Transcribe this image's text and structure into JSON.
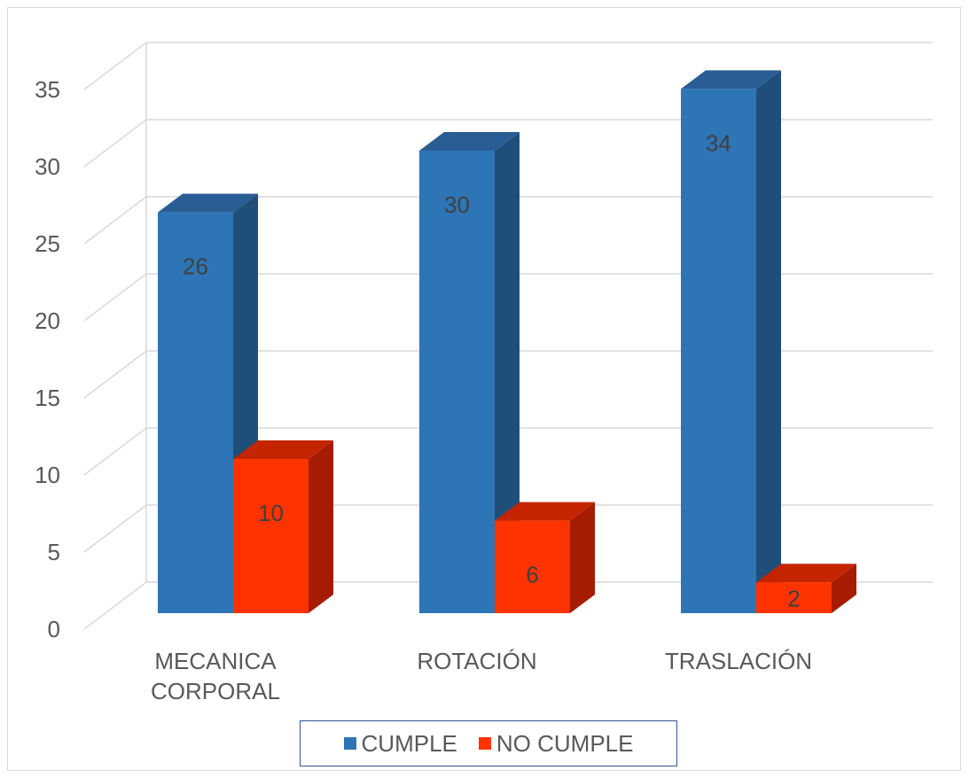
{
  "chart_data": {
    "type": "bar",
    "categories": [
      "MECANICA CORPORAL",
      "ROTACIÓN",
      "TRASLACIÓN"
    ],
    "category_lines": [
      [
        "MECANICA",
        "CORPORAL"
      ],
      [
        "ROTACIÓN"
      ],
      [
        "TRASLACIÓN"
      ]
    ],
    "series": [
      {
        "name": "CUMPLE",
        "values": [
          26,
          30,
          34
        ],
        "color": "#2e75b6",
        "side_color": "#1f4e79",
        "top_color": "#2a5d94"
      },
      {
        "name": "NO CUMPLE",
        "values": [
          10,
          6,
          2
        ],
        "color": "#ff3300",
        "side_color": "#a61c00",
        "top_color": "#c42400"
      }
    ],
    "ylim": [
      0,
      35
    ],
    "yticks": [
      0,
      5,
      10,
      15,
      20,
      25,
      30,
      35
    ],
    "grid": true,
    "legend_position": "bottom"
  }
}
